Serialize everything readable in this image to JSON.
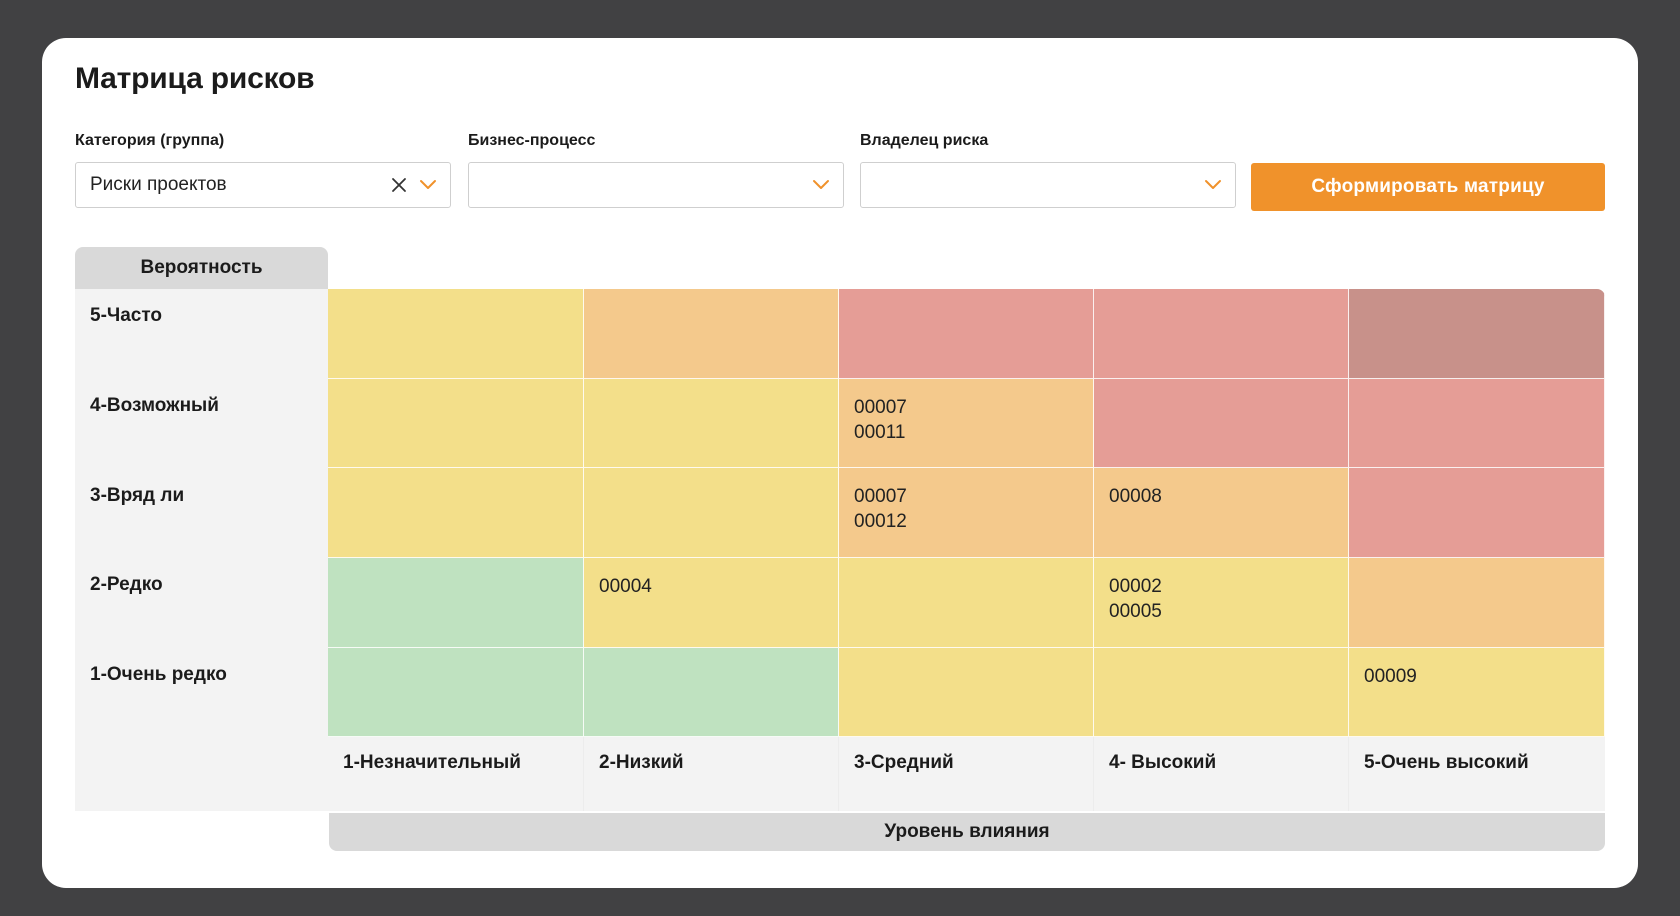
{
  "page": {
    "title": "Матрица рисков"
  },
  "filters": [
    {
      "label": "Категория (группа)",
      "value": "Риски проектов",
      "clearable": true
    },
    {
      "label": "Бизнес-процесс",
      "value": "",
      "clearable": false
    },
    {
      "label": "Владелец риска",
      "value": "",
      "clearable": false
    }
  ],
  "actions": {
    "build_label": "Сформировать матрицу"
  },
  "matrix": {
    "probability_header": "Вероятность",
    "impact_footer": "Уровень влияния",
    "rows": [
      {
        "label": "5-Часто"
      },
      {
        "label": "4-Возможный"
      },
      {
        "label": "3-Вряд ли"
      },
      {
        "label": "2-Редко"
      },
      {
        "label": "1-Очень редко"
      }
    ],
    "columns": [
      {
        "label": "1-Незначительный"
      },
      {
        "label": "2-Низкий"
      },
      {
        "label": "3-Средний"
      },
      {
        "label": "4- Высокий"
      },
      {
        "label": "5-Очень высокий"
      }
    ],
    "colors": {
      "green": "#bfe2c0",
      "yellow": "#f3df8a",
      "orange": "#f4c98c",
      "red": "#e59d96",
      "dark_red": "#c8918a"
    },
    "cells": [
      [
        {
          "color": "yellow",
          "codes": []
        },
        {
          "color": "orange",
          "codes": []
        },
        {
          "color": "red",
          "codes": []
        },
        {
          "color": "red",
          "codes": []
        },
        {
          "color": "dark_red",
          "codes": []
        }
      ],
      [
        {
          "color": "yellow",
          "codes": []
        },
        {
          "color": "yellow",
          "codes": []
        },
        {
          "color": "orange",
          "codes": [
            "00007",
            "00011"
          ]
        },
        {
          "color": "red",
          "codes": []
        },
        {
          "color": "red",
          "codes": []
        }
      ],
      [
        {
          "color": "yellow",
          "codes": []
        },
        {
          "color": "yellow",
          "codes": []
        },
        {
          "color": "orange",
          "codes": [
            "00007",
            "00012"
          ]
        },
        {
          "color": "orange",
          "codes": [
            "00008"
          ]
        },
        {
          "color": "red",
          "codes": []
        }
      ],
      [
        {
          "color": "green",
          "codes": []
        },
        {
          "color": "yellow",
          "codes": [
            "00004"
          ]
        },
        {
          "color": "yellow",
          "codes": []
        },
        {
          "color": "yellow",
          "codes": [
            "00002",
            "00005"
          ]
        },
        {
          "color": "orange",
          "codes": []
        }
      ],
      [
        {
          "color": "green",
          "codes": []
        },
        {
          "color": "green",
          "codes": []
        },
        {
          "color": "yellow",
          "codes": []
        },
        {
          "color": "yellow",
          "codes": []
        },
        {
          "color": "yellow",
          "codes": [
            "00009"
          ]
        }
      ]
    ]
  },
  "colors": {
    "accent": "#f0922b",
    "chevron": "#f0922b",
    "backdrop": "#414143"
  }
}
